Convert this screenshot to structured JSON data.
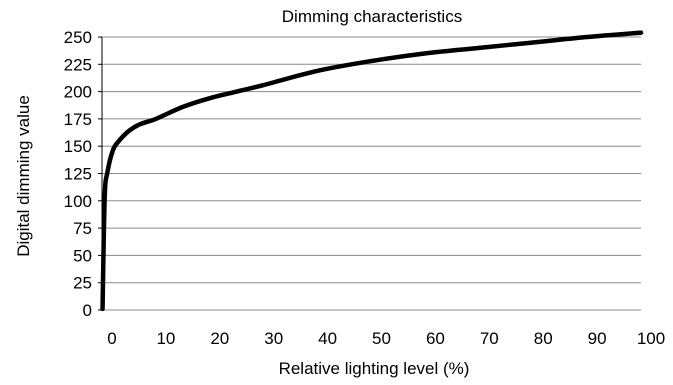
{
  "chart_data": {
    "type": "line",
    "title": "Dimming characteristics",
    "xlabel": "Relative lighting level (%)",
    "ylabel": "Digital dimming value",
    "xlim": [
      0,
      100
    ],
    "ylim": [
      0,
      250
    ],
    "x_ticks": [
      "0",
      "10",
      "20",
      "30",
      "40",
      "50",
      "60",
      "70",
      "80",
      "90",
      "100"
    ],
    "y_ticks": [
      "0",
      "25",
      "50",
      "75",
      "100",
      "125",
      "150",
      "175",
      "200",
      "225",
      "250"
    ],
    "grid": "horizontal",
    "series": [
      {
        "color": "#000000",
        "x": [
          0.1,
          0.5,
          1,
          2,
          3,
          5,
          7,
          10,
          15,
          20,
          25,
          30,
          40,
          50,
          60,
          70,
          80,
          90,
          100
        ],
        "y": [
          1,
          103,
          126,
          146,
          154,
          164,
          170,
          175,
          186,
          194,
          200,
          206,
          219,
          228,
          235,
          240,
          245,
          250,
          254
        ]
      }
    ]
  }
}
